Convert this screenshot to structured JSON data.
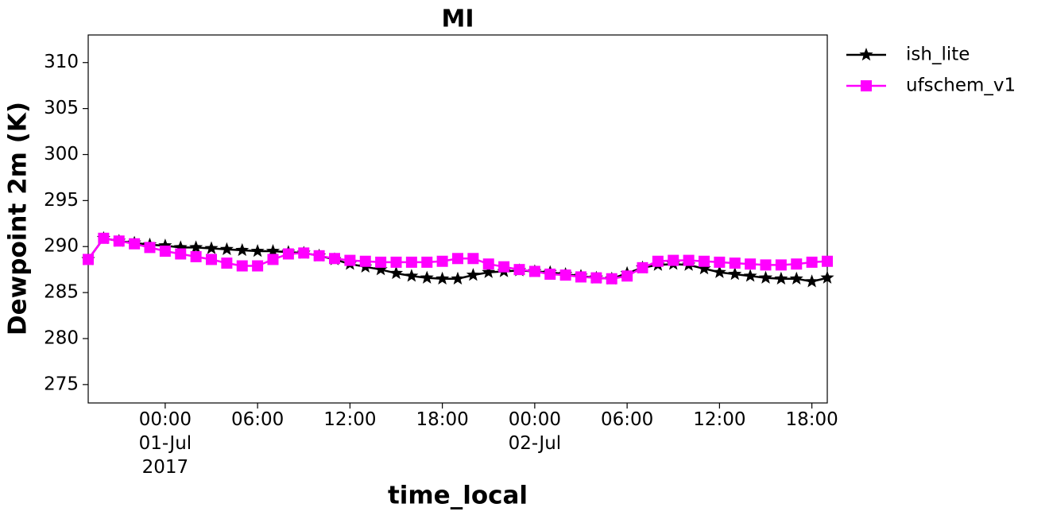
{
  "chart_data": {
    "type": "line",
    "title": "MI",
    "xlabel": "time_local",
    "ylabel": "Dewpoint 2m (K)",
    "x": [
      "2017-06-30T19:00",
      "2017-06-30T20:00",
      "2017-06-30T21:00",
      "2017-06-30T22:00",
      "2017-06-30T23:00",
      "2017-07-01T00:00",
      "2017-07-01T01:00",
      "2017-07-01T02:00",
      "2017-07-01T03:00",
      "2017-07-01T04:00",
      "2017-07-01T05:00",
      "2017-07-01T06:00",
      "2017-07-01T07:00",
      "2017-07-01T08:00",
      "2017-07-01T09:00",
      "2017-07-01T10:00",
      "2017-07-01T11:00",
      "2017-07-01T12:00",
      "2017-07-01T13:00",
      "2017-07-01T14:00",
      "2017-07-01T15:00",
      "2017-07-01T16:00",
      "2017-07-01T17:00",
      "2017-07-01T18:00",
      "2017-07-01T19:00",
      "2017-07-01T20:00",
      "2017-07-01T21:00",
      "2017-07-01T22:00",
      "2017-07-01T23:00",
      "2017-07-02T00:00",
      "2017-07-02T01:00",
      "2017-07-02T02:00",
      "2017-07-02T03:00",
      "2017-07-02T04:00",
      "2017-07-02T05:00",
      "2017-07-02T06:00",
      "2017-07-02T07:00",
      "2017-07-02T08:00",
      "2017-07-02T09:00",
      "2017-07-02T10:00",
      "2017-07-02T11:00",
      "2017-07-02T12:00",
      "2017-07-02T13:00",
      "2017-07-02T14:00",
      "2017-07-02T15:00",
      "2017-07-02T16:00",
      "2017-07-02T17:00",
      "2017-07-02T18:00",
      "2017-07-02T19:00"
    ],
    "series": [
      {
        "name": "ish_lite",
        "color": "#000000",
        "marker": "star",
        "values": [
          288.6,
          290.9,
          290.6,
          290.4,
          290.2,
          290.1,
          289.9,
          289.9,
          289.8,
          289.7,
          289.6,
          289.5,
          289.5,
          289.4,
          289.3,
          289.0,
          288.6,
          288.1,
          287.8,
          287.5,
          287.1,
          286.8,
          286.6,
          286.5,
          286.5,
          286.9,
          287.2,
          287.3,
          287.4,
          287.3,
          287.2,
          287.0,
          286.8,
          286.6,
          286.5,
          287.1,
          287.7,
          288.0,
          288.1,
          288.0,
          287.6,
          287.2,
          287.0,
          286.8,
          286.6,
          286.5,
          286.5,
          286.2,
          286.6
        ]
      },
      {
        "name": "ufschem_v1",
        "color": "#ff00ff",
        "marker": "square",
        "values": [
          288.6,
          290.9,
          290.6,
          290.3,
          289.9,
          289.5,
          289.2,
          288.9,
          288.6,
          288.2,
          287.9,
          287.9,
          288.6,
          289.2,
          289.3,
          289.0,
          288.7,
          288.5,
          288.4,
          288.3,
          288.3,
          288.3,
          288.3,
          288.4,
          288.7,
          288.7,
          288.1,
          287.8,
          287.5,
          287.3,
          287.0,
          286.9,
          286.7,
          286.6,
          286.5,
          286.8,
          287.7,
          288.4,
          288.5,
          288.5,
          288.4,
          288.3,
          288.2,
          288.1,
          288.0,
          288.0,
          288.1,
          288.3,
          288.4
        ]
      }
    ],
    "xlim": [
      "2017-06-30T19:00",
      "2017-07-02T19:00"
    ],
    "xticks": [
      {
        "value": "2017-07-01T00:00",
        "label": [
          "00:00",
          "01-Jul",
          "2017"
        ]
      },
      {
        "value": "2017-07-01T06:00",
        "label": [
          "06:00"
        ]
      },
      {
        "value": "2017-07-01T12:00",
        "label": [
          "12:00"
        ]
      },
      {
        "value": "2017-07-01T18:00",
        "label": [
          "18:00"
        ]
      },
      {
        "value": "2017-07-02T00:00",
        "label": [
          "00:00",
          "02-Jul"
        ]
      },
      {
        "value": "2017-07-02T06:00",
        "label": [
          "06:00"
        ]
      },
      {
        "value": "2017-07-02T12:00",
        "label": [
          "12:00"
        ]
      },
      {
        "value": "2017-07-02T18:00",
        "label": [
          "18:00"
        ]
      }
    ],
    "ylim": [
      273,
      313
    ],
    "yticks": [
      275,
      280,
      285,
      290,
      295,
      300,
      305,
      310
    ],
    "grid": false,
    "legend": "outside upper right"
  }
}
